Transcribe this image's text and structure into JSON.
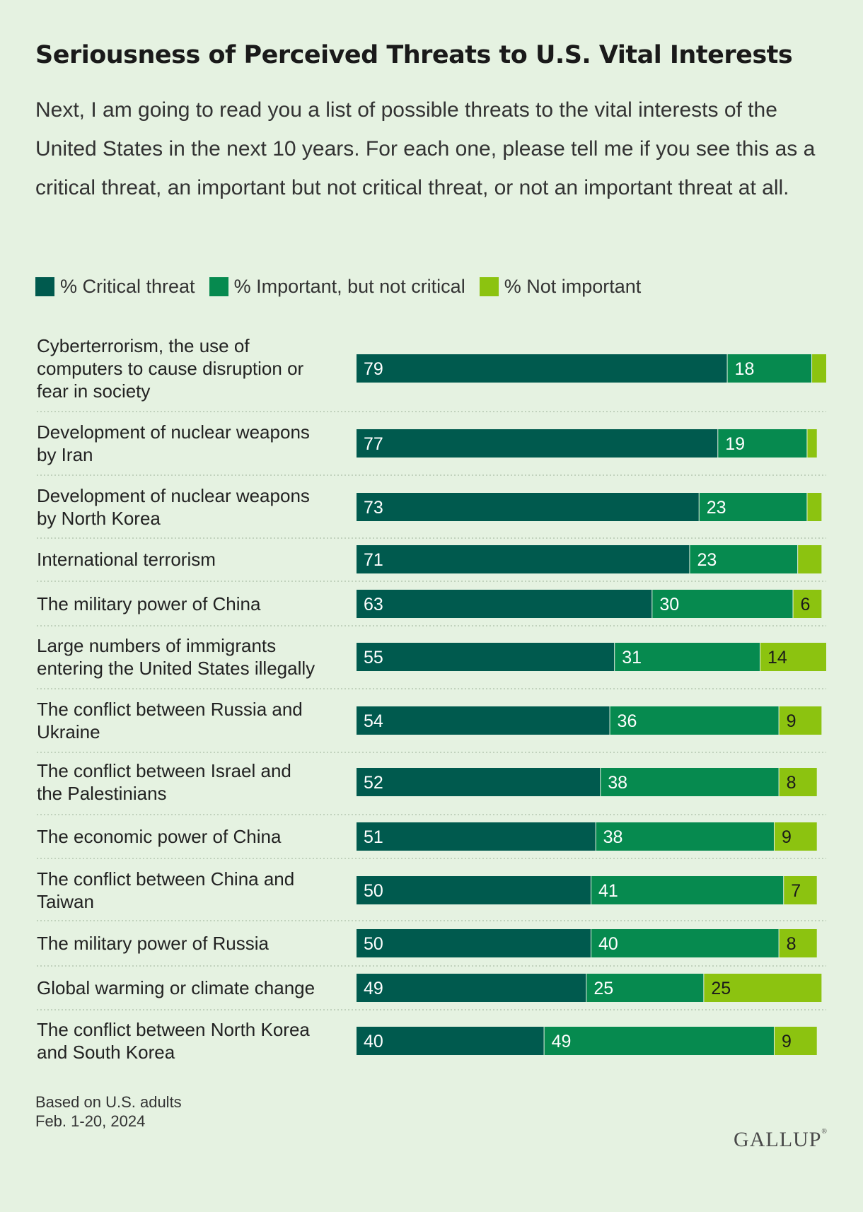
{
  "title": "Seriousness of Perceived Threats to U.S. Vital Interests",
  "subtitle": "Next, I am going to read you a list of possible threats to the vital interests of the United States in the next 10 years. For each one, please tell me if you see this as a critical threat, an important but not critical threat, or not an important threat at all.",
  "legend": [
    {
      "label": "% Critical threat",
      "color": "#005a4e"
    },
    {
      "label": "% Important, but not critical",
      "color": "#068a4f"
    },
    {
      "label": "% Not important",
      "color": "#8cc310"
    }
  ],
  "chart_data": {
    "type": "bar",
    "orientation": "horizontal",
    "stacked": true,
    "xlim": [
      0,
      100
    ],
    "categories": [
      [
        "Cyberterrorism, the use of",
        "computers to cause disruption or",
        "fear in society"
      ],
      [
        "Development of nuclear weapons",
        "by Iran"
      ],
      [
        "Development of nuclear weapons",
        "by North Korea"
      ],
      [
        "International terrorism"
      ],
      [
        "The military power of China"
      ],
      [
        "Large numbers of immigrants",
        "entering the United States illegally"
      ],
      [
        "The conflict between Russia and",
        "Ukraine"
      ],
      [
        "The conflict between Israel and",
        "the Palestinians"
      ],
      [
        "The economic power of China"
      ],
      [
        "The conflict between China and",
        "Taiwan"
      ],
      [
        "The military power of Russia"
      ],
      [
        "Global warming or climate change"
      ],
      [
        "The conflict between North Korea",
        "and South Korea"
      ]
    ],
    "series": [
      {
        "name": "% Critical threat",
        "color": "#005a4e",
        "label_color": "#ffffff",
        "values": [
          79,
          77,
          73,
          71,
          63,
          55,
          54,
          52,
          51,
          50,
          50,
          49,
          40
        ],
        "labels": [
          "79",
          "77",
          "73",
          "71",
          "63",
          "55",
          "54",
          "52",
          "51",
          "50",
          "50",
          "49",
          "40"
        ]
      },
      {
        "name": "% Important, but not critical",
        "color": "#068a4f",
        "label_color": "#ffffff",
        "values": [
          18,
          19,
          23,
          23,
          30,
          31,
          36,
          38,
          38,
          41,
          40,
          25,
          49
        ],
        "labels": [
          "18",
          "19",
          "23",
          "23",
          "30",
          "31",
          "36",
          "38",
          "38",
          "41",
          "40",
          "25",
          "49"
        ]
      },
      {
        "name": "% Not important",
        "color": "#8cc310",
        "label_color": "#1a1a1a",
        "values": [
          3,
          2,
          3,
          5,
          6,
          14,
          9,
          8,
          9,
          7,
          8,
          25,
          9
        ],
        "labels": [
          "",
          "",
          "",
          "",
          "6",
          "14",
          "9",
          "8",
          "9",
          "7",
          "8",
          "25",
          "9"
        ]
      }
    ]
  },
  "footnote": [
    "Based on U.S. adults",
    "Feb. 1-20, 2024"
  ],
  "logo": "GALLUP"
}
